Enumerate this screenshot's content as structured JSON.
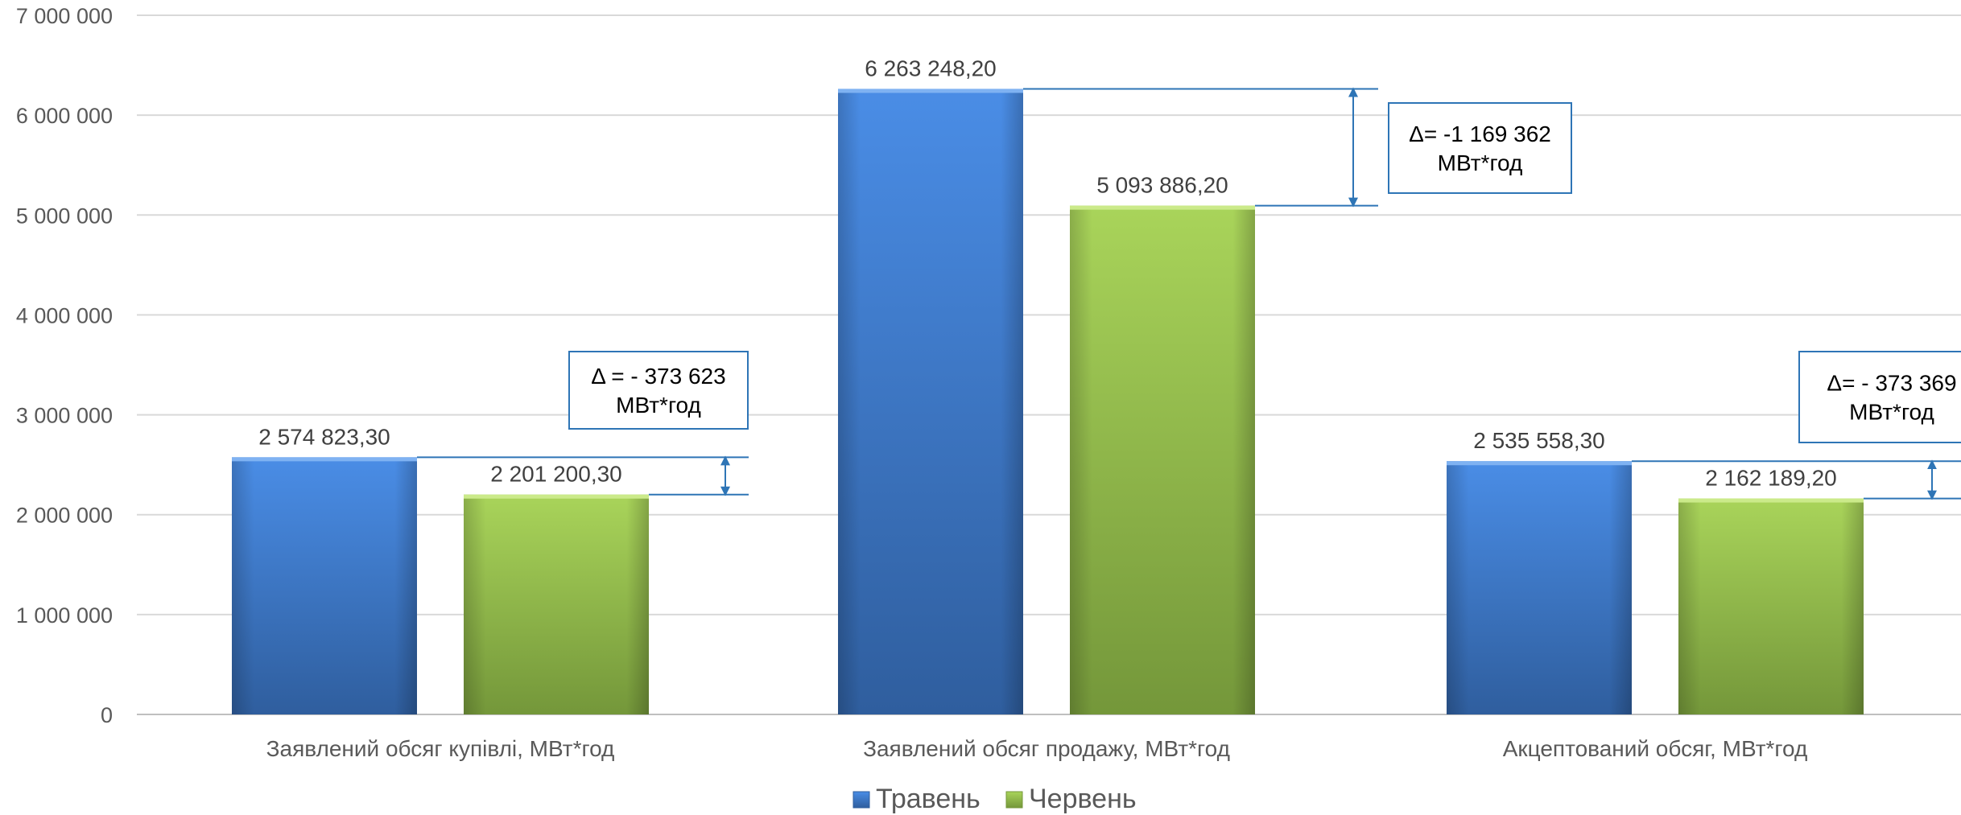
{
  "chart_data": {
    "type": "bar",
    "categories": [
      "Заявлений обсяг купівлі, МВт*год",
      "Заявлений обсяг продажу, МВт*год",
      "Акцептований обсяг, МВт*год"
    ],
    "series": [
      {
        "name": "Травень",
        "values": [
          2574823.3,
          6263248.2,
          2535558.3
        ],
        "labels": [
          "2 574 823,30",
          "6 263 248,20",
          "2 535 558,30"
        ]
      },
      {
        "name": "Червень",
        "values": [
          2201200.3,
          5093886.2,
          2162189.2
        ],
        "labels": [
          "2 201 200,30",
          "5 093 886,20",
          "2 162 189,20"
        ]
      }
    ],
    "ylim": [
      0,
      7000000
    ],
    "yticks": [
      {
        "value": 0,
        "label": "0"
      },
      {
        "value": 1000000,
        "label": "1 000 000"
      },
      {
        "value": 2000000,
        "label": "2 000 000"
      },
      {
        "value": 3000000,
        "label": "3 000 000"
      },
      {
        "value": 4000000,
        "label": "4 000 000"
      },
      {
        "value": 5000000,
        "label": "5 000 000"
      },
      {
        "value": 6000000,
        "label": "6 000 000"
      },
      {
        "value": 7000000,
        "label": "7 000 000"
      }
    ],
    "grid": true,
    "legend_position": "bottom",
    "annotations": [
      {
        "category_index": 0,
        "line1": "Δ = - 373 623",
        "line2": "МВт*год"
      },
      {
        "category_index": 1,
        "line1": "Δ= -1 169 362",
        "line2": "МВт*год"
      },
      {
        "category_index": 2,
        "line1": "Δ= - 373 369",
        "line2": "МВт*год"
      }
    ],
    "colors": {
      "series_1_top": "#4A8DE6",
      "series_1_bottom": "#2F5E9E",
      "series_2_top": "#A9D45A",
      "series_2_bottom": "#74973A",
      "annotation": "#2E75B6",
      "grid": "#D9D9D9",
      "axis": "#BFBFBF"
    }
  }
}
